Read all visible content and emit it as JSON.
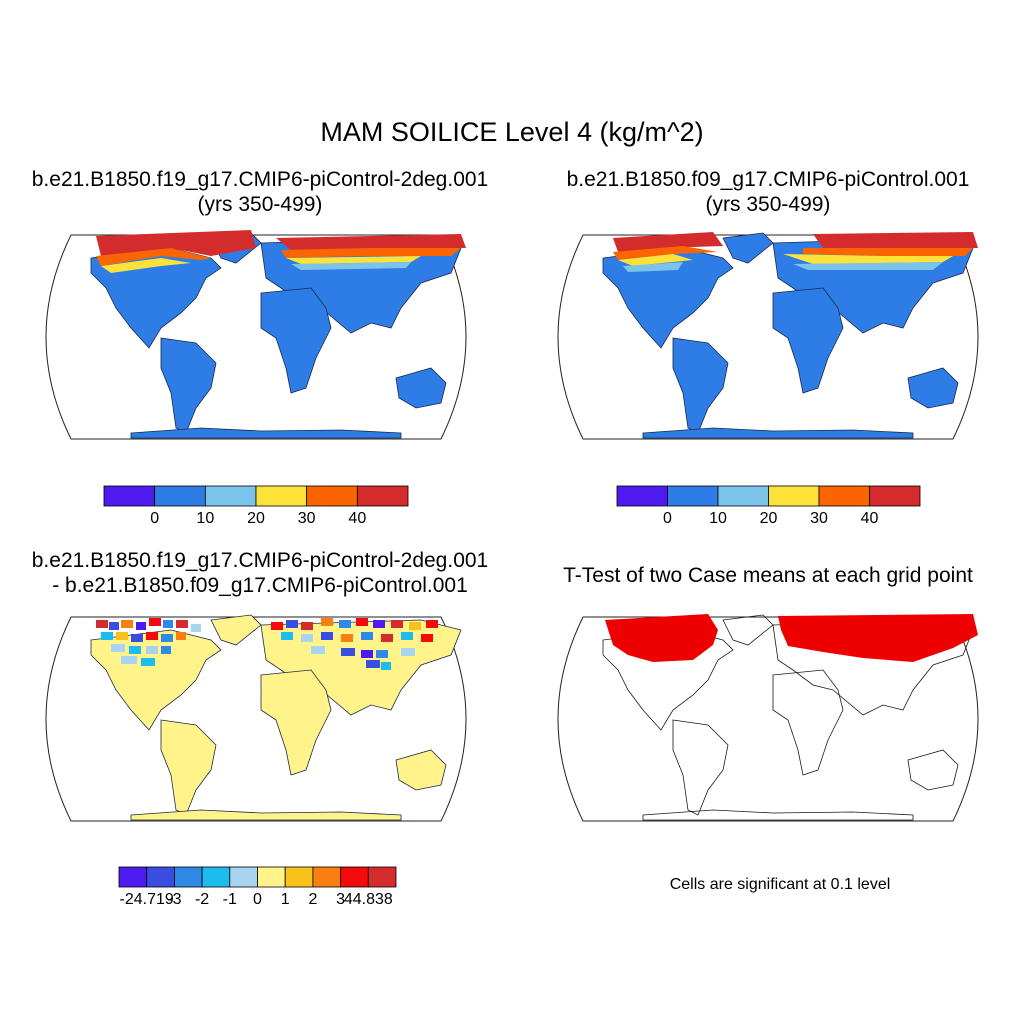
{
  "title": "MAM SOILICE Level 4 (kg/m^2)",
  "panels": [
    {
      "line1": "b.e21.B1850.f19_g17.CMIP6-piControl-2deg.001",
      "line2": "(yrs 350-499)"
    },
    {
      "line1": "b.e21.B1850.f09_g17.CMIP6-piControl.001",
      "line2": "(yrs 350-499)"
    },
    {
      "line1": "b.e21.B1850.f19_g17.CMIP6-piControl-2deg.001",
      "line2": "- b.e21.B1850.f09_g17.CMIP6-piControl.001"
    },
    {
      "line1": "T-Test of two Case means at each grid point"
    }
  ],
  "colorbar_top": {
    "colors": [
      "#4d1af0",
      "#2e7de6",
      "#7cc3ec",
      "#fde339",
      "#fb6500",
      "#d42c2c"
    ],
    "labels": [
      "0",
      "10",
      "20",
      "30",
      "40"
    ]
  },
  "colorbar_diff": {
    "colors": [
      "#4d1af0",
      "#3a4de0",
      "#2e8ae6",
      "#1cbdee",
      "#a8d4ef",
      "#fff38a",
      "#f9c21a",
      "#f97f0e",
      "#f30b0b",
      "#d42c2c"
    ],
    "labels": [
      "-24.719",
      "-3",
      "-2",
      "-1",
      "0",
      "1",
      "2",
      "3",
      "44.838"
    ]
  },
  "significance_note": "Cells are significant at 0.1 level",
  "colors": {
    "low": "#2e7de6",
    "zero_diff": "#fff38a",
    "significant": "#ee0000"
  }
}
